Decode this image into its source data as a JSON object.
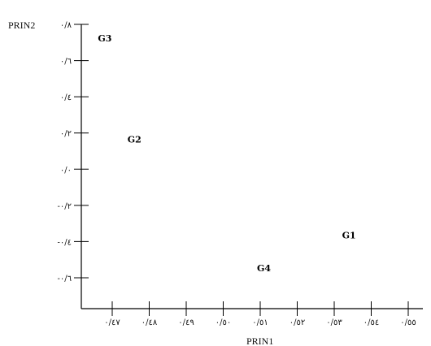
{
  "chart_data": {
    "type": "scatter",
    "xlabel": "PRIN1",
    "ylabel": "PRIN2",
    "xlim": [
      0.465,
      0.555
    ],
    "ylim": [
      -0.75,
      0.8
    ],
    "x_ticks": [
      {
        "value": 0.47,
        "label": "٠/٤٧"
      },
      {
        "value": 0.48,
        "label": "٠/٤٨"
      },
      {
        "value": 0.49,
        "label": "٠/٤٩"
      },
      {
        "value": 0.5,
        "label": "٠/٥٠"
      },
      {
        "value": 0.51,
        "label": "٠/٥١"
      },
      {
        "value": 0.52,
        "label": "٠/٥٢"
      },
      {
        "value": 0.53,
        "label": "٠/٥٣"
      },
      {
        "value": 0.54,
        "label": "٠/٥٤"
      },
      {
        "value": 0.55,
        "label": "٠/٥٥"
      }
    ],
    "y_ticks": [
      {
        "value": 0.8,
        "label": "٠/٨"
      },
      {
        "value": 0.6,
        "label": "٠/٦"
      },
      {
        "value": 0.4,
        "label": "٠/٤"
      },
      {
        "value": 0.2,
        "label": "٠/٢"
      },
      {
        "value": 0.0,
        "label": "٠/٠"
      },
      {
        "value": -0.2,
        "label": "-٠/٢"
      },
      {
        "value": -0.4,
        "label": "-٠/٤"
      },
      {
        "value": -0.6,
        "label": "-٠/٦"
      }
    ],
    "points": [
      {
        "label": "G3",
        "x": 0.468,
        "y": 0.72
      },
      {
        "label": "G2",
        "x": 0.476,
        "y": 0.16
      },
      {
        "label": "G1",
        "x": 0.534,
        "y": -0.37
      },
      {
        "label": "G4",
        "x": 0.511,
        "y": -0.55
      }
    ],
    "grid": false,
    "legend": "none"
  }
}
